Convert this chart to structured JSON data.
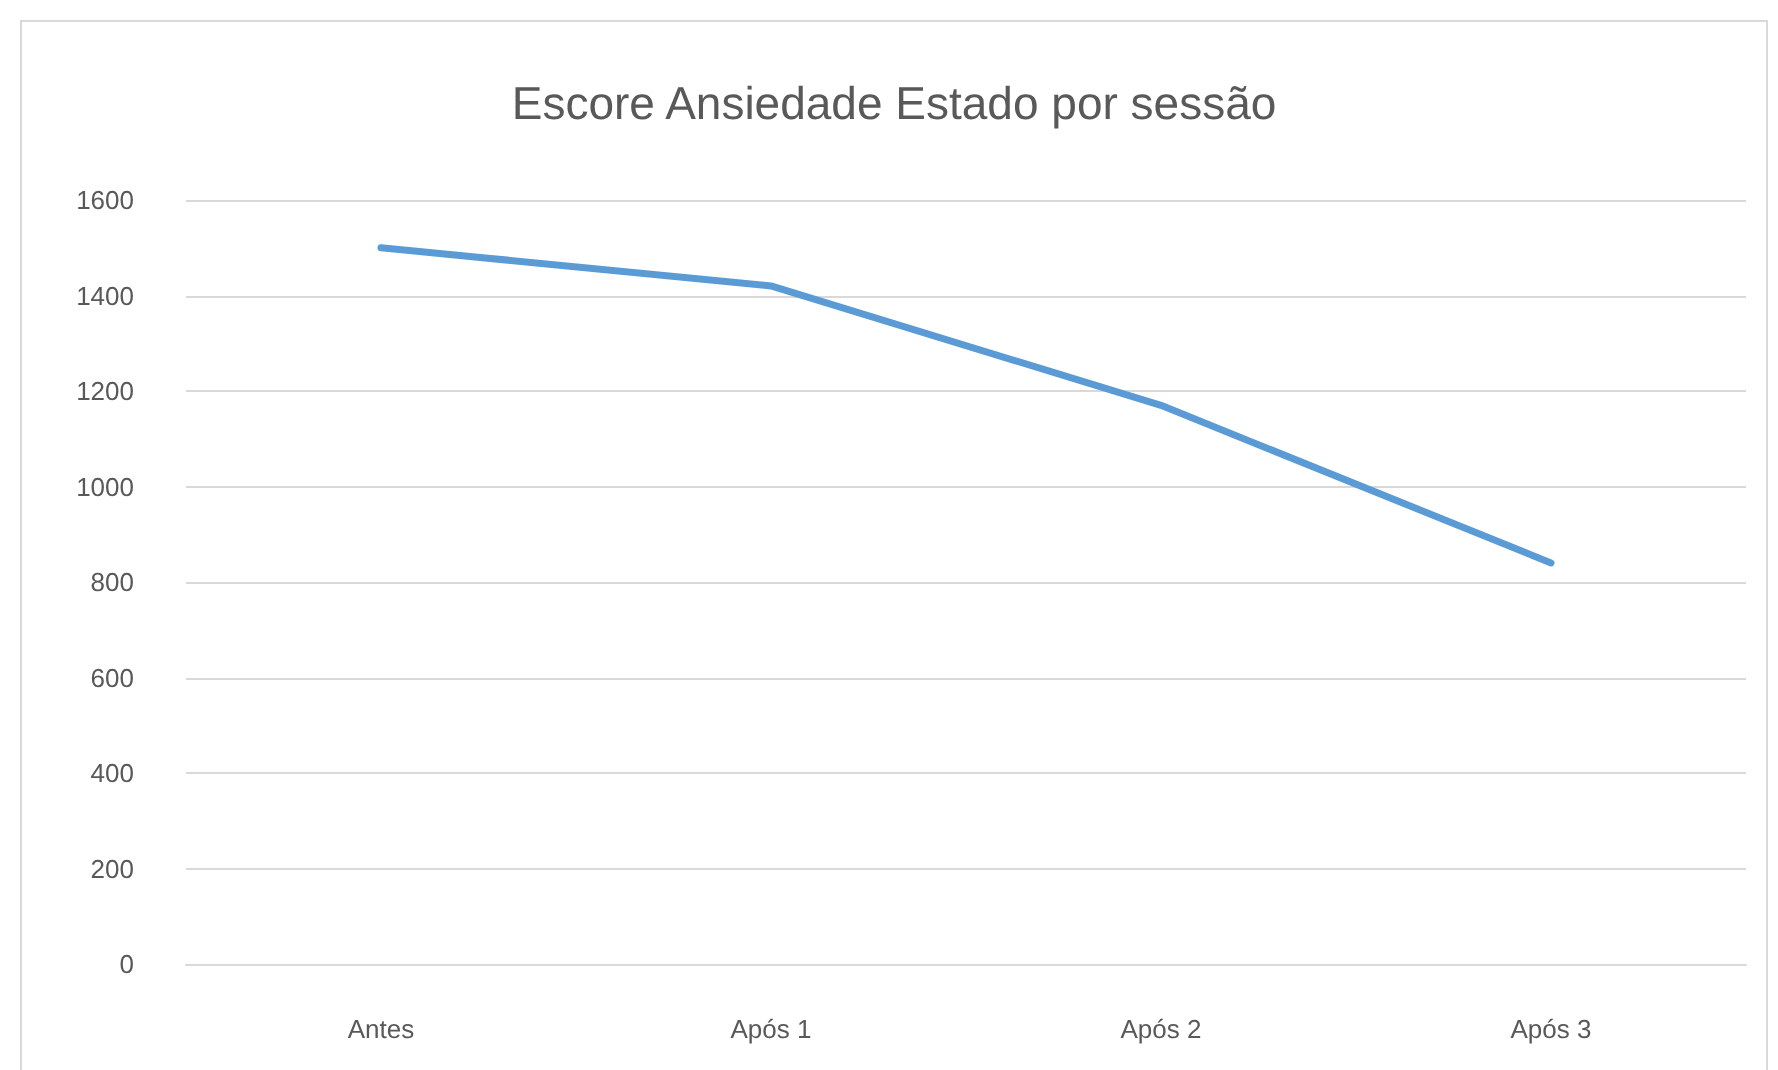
{
  "chart_data": {
    "type": "line",
    "title": "Escore Ansiedade Estado por sessão",
    "categories": [
      "Antes",
      "Após 1",
      "Após 2",
      "Após 3"
    ],
    "series": [
      {
        "color": "#5b9bd5",
        "values": [
          1500,
          1420,
          1170,
          840
        ]
      }
    ],
    "ylim": [
      0,
      1600
    ],
    "yticks": [
      0,
      200,
      400,
      600,
      800,
      1000,
      1200,
      1400,
      1600
    ],
    "grid": "y",
    "marker": "none",
    "line_style": "solid"
  }
}
